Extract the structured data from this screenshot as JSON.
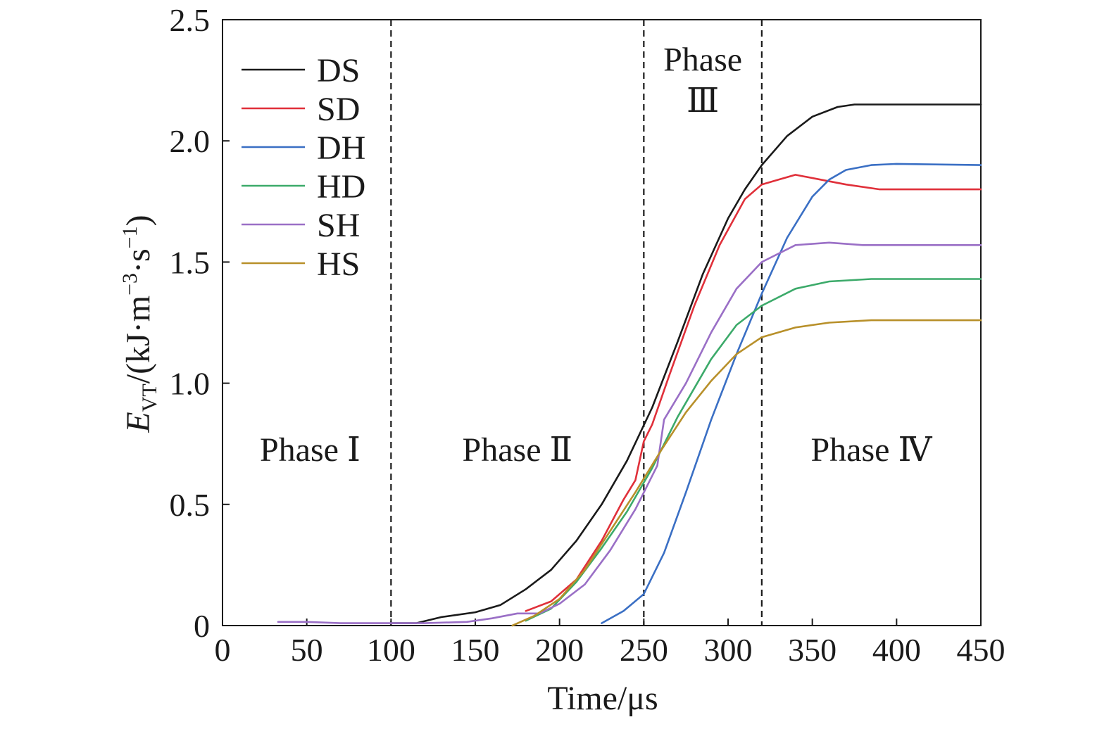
{
  "chart_data": {
    "type": "line",
    "title": "",
    "xlabel": "Time/μs",
    "ylabel": {
      "symbol": "E",
      "subscript": "VT",
      "unit_prefix": "/(kJ·m",
      "exp1": "−3",
      "unit_mid": "·s",
      "exp2": "−1",
      "unit_suffix": ")"
    },
    "xlim": [
      0,
      450
    ],
    "ylim": [
      0,
      2.5
    ],
    "x_ticks": [
      0,
      50,
      100,
      150,
      200,
      250,
      300,
      350,
      400,
      450
    ],
    "y_ticks": [
      0,
      0.5,
      1.0,
      1.5,
      2.0,
      2.5
    ],
    "y_tick_labels": [
      "0",
      "0.5",
      "1.0",
      "1.5",
      "2.0",
      "2.5"
    ],
    "grid": false,
    "legend_position": "top-left",
    "phase_boundaries": [
      100,
      250,
      320
    ],
    "phase_labels": [
      {
        "text": "Phase Ⅰ",
        "x": 52,
        "y": 0.68
      },
      {
        "text": "Phase Ⅱ",
        "x": 175,
        "y": 0.68
      },
      {
        "text": "Phase",
        "x": 285,
        "y": 2.29
      },
      {
        "text": "Ⅲ",
        "x": 285,
        "y": 2.12
      },
      {
        "text": "Phase Ⅳ",
        "x": 385,
        "y": 0.68
      }
    ],
    "series": [
      {
        "name": "DS",
        "color": "#1a1a1a",
        "points": [
          [
            100,
            0.01
          ],
          [
            115,
            0.01
          ],
          [
            130,
            0.035
          ],
          [
            150,
            0.055
          ],
          [
            165,
            0.085
          ],
          [
            180,
            0.15
          ],
          [
            195,
            0.23
          ],
          [
            210,
            0.35
          ],
          [
            225,
            0.5
          ],
          [
            240,
            0.68
          ],
          [
            255,
            0.9
          ],
          [
            270,
            1.17
          ],
          [
            285,
            1.45
          ],
          [
            300,
            1.68
          ],
          [
            310,
            1.8
          ],
          [
            320,
            1.9
          ],
          [
            335,
            2.02
          ],
          [
            350,
            2.1
          ],
          [
            365,
            2.14
          ],
          [
            375,
            2.15
          ],
          [
            450,
            2.15
          ]
        ]
      },
      {
        "name": "SD",
        "color": "#e0303a",
        "points": [
          [
            180,
            0.06
          ],
          [
            195,
            0.1
          ],
          [
            210,
            0.19
          ],
          [
            225,
            0.35
          ],
          [
            238,
            0.52
          ],
          [
            245,
            0.6
          ],
          [
            250,
            0.76
          ],
          [
            255,
            0.83
          ],
          [
            265,
            1.03
          ],
          [
            280,
            1.32
          ],
          [
            295,
            1.57
          ],
          [
            310,
            1.76
          ],
          [
            320,
            1.82
          ],
          [
            330,
            1.84
          ],
          [
            340,
            1.86
          ],
          [
            355,
            1.84
          ],
          [
            370,
            1.82
          ],
          [
            390,
            1.8
          ],
          [
            450,
            1.8
          ]
        ]
      },
      {
        "name": "DH",
        "color": "#3a6fc4",
        "points": [
          [
            225,
            0.01
          ],
          [
            238,
            0.06
          ],
          [
            250,
            0.13
          ],
          [
            262,
            0.3
          ],
          [
            275,
            0.55
          ],
          [
            290,
            0.85
          ],
          [
            305,
            1.12
          ],
          [
            320,
            1.37
          ],
          [
            335,
            1.6
          ],
          [
            350,
            1.77
          ],
          [
            360,
            1.84
          ],
          [
            370,
            1.88
          ],
          [
            385,
            1.9
          ],
          [
            400,
            1.905
          ],
          [
            450,
            1.9
          ]
        ]
      },
      {
        "name": "HD",
        "color": "#3caa6a",
        "points": [
          [
            180,
            0.02
          ],
          [
            195,
            0.07
          ],
          [
            210,
            0.18
          ],
          [
            225,
            0.32
          ],
          [
            240,
            0.47
          ],
          [
            255,
            0.65
          ],
          [
            270,
            0.86
          ],
          [
            290,
            1.1
          ],
          [
            305,
            1.24
          ],
          [
            320,
            1.32
          ],
          [
            340,
            1.39
          ],
          [
            360,
            1.42
          ],
          [
            385,
            1.43
          ],
          [
            450,
            1.43
          ]
        ]
      },
      {
        "name": "SH",
        "color": "#9a6fc6",
        "points": [
          [
            33,
            0.015
          ],
          [
            50,
            0.015
          ],
          [
            70,
            0.01
          ],
          [
            100,
            0.01
          ],
          [
            120,
            0.01
          ],
          [
            145,
            0.015
          ],
          [
            160,
            0.03
          ],
          [
            175,
            0.05
          ],
          [
            188,
            0.05
          ],
          [
            200,
            0.09
          ],
          [
            215,
            0.17
          ],
          [
            230,
            0.31
          ],
          [
            245,
            0.48
          ],
          [
            258,
            0.66
          ],
          [
            262,
            0.85
          ],
          [
            275,
            1.0
          ],
          [
            290,
            1.21
          ],
          [
            305,
            1.39
          ],
          [
            320,
            1.5
          ],
          [
            340,
            1.57
          ],
          [
            360,
            1.58
          ],
          [
            380,
            1.57
          ],
          [
            450,
            1.57
          ]
        ]
      },
      {
        "name": "HS",
        "color": "#b8902a",
        "points": [
          [
            172,
            0.0
          ],
          [
            185,
            0.04
          ],
          [
            200,
            0.11
          ],
          [
            215,
            0.23
          ],
          [
            230,
            0.39
          ],
          [
            245,
            0.55
          ],
          [
            260,
            0.72
          ],
          [
            275,
            0.88
          ],
          [
            290,
            1.01
          ],
          [
            305,
            1.12
          ],
          [
            320,
            1.19
          ],
          [
            340,
            1.23
          ],
          [
            360,
            1.25
          ],
          [
            385,
            1.26
          ],
          [
            450,
            1.26
          ]
        ]
      }
    ]
  }
}
